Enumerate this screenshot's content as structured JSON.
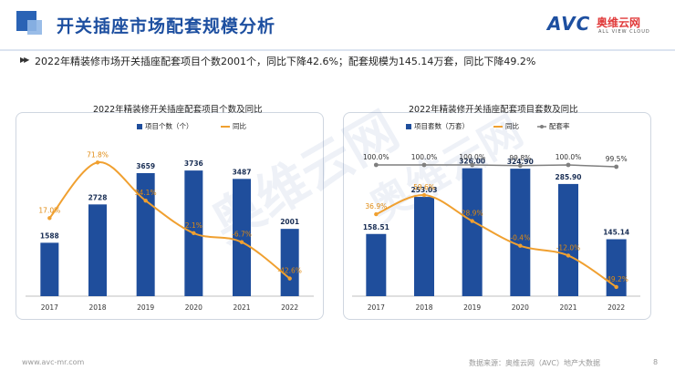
{
  "header": {
    "title": "开关插座市场配套规模分析"
  },
  "brand": {
    "logo_text": "AVC",
    "name_cn": "奥维云网",
    "name_en": "ALL VIEW CLOUD"
  },
  "summary": {
    "icon": "double-chevron-icon",
    "text": "2022年精装修市场开关插座配套项目个数2001个，同比下降42.6%；配套规模为145.14万套，同比下降49.2%"
  },
  "watermark": {
    "text": "奥维云网"
  },
  "footer": {
    "url": "www.avc-mr.com",
    "source": "数据来源：奥维云网（AVC）地产大数据",
    "page": "8"
  },
  "colors": {
    "bar": "#1f4e9c",
    "line": "#f0a030",
    "rate_line": "#7f7f7f",
    "title": "#1d4fa0"
  },
  "chart_data": [
    {
      "type": "bar",
      "title": "2022年精装修开关插座配套项目个数及同比",
      "categories": [
        "2017",
        "2018",
        "2019",
        "2020",
        "2021",
        "2022"
      ],
      "series": [
        {
          "name": "项目个数（个）",
          "type": "bar",
          "values": [
            1588,
            2728,
            3659,
            3736,
            3487,
            2001
          ],
          "labels": [
            "1588",
            "2728",
            "3659",
            "3736",
            "3487",
            "2001"
          ]
        },
        {
          "name": "同比",
          "type": "line",
          "values": [
            17.0,
            71.8,
            34.1,
            2.1,
            -6.7,
            -42.6
          ],
          "labels": [
            "17.0%",
            "71.8%",
            "34.1%",
            "2.1%",
            "-6.7%",
            "-42.6%"
          ]
        }
      ],
      "ylim": [
        0,
        4200
      ],
      "y2lim": [
        -60,
        90
      ],
      "grid": false,
      "legend": "top"
    },
    {
      "type": "bar",
      "title": "2022年精装修开关插座配套项目套数及同比",
      "categories": [
        "2017",
        "2018",
        "2019",
        "2020",
        "2021",
        "2022"
      ],
      "series": [
        {
          "name": "项目套数（万套）",
          "type": "bar",
          "values": [
            158.51,
            253.03,
            326.0,
            324.9,
            285.9,
            145.14
          ],
          "labels": [
            "158.51",
            "253.03",
            "326.00",
            "324.90",
            "285.90",
            "145.14"
          ]
        },
        {
          "name": "同比",
          "type": "line",
          "values": [
            36.9,
            59.6,
            28.9,
            -0.4,
            -12.0,
            -49.2
          ],
          "labels": [
            "36.9%",
            "59.6%",
            "28.9%",
            "-0.4%",
            "-12.0%",
            "-49.2%"
          ]
        },
        {
          "name": "配套率",
          "type": "line",
          "values": [
            100.0,
            100.0,
            100.0,
            99.8,
            100.0,
            99.5
          ],
          "labels": [
            "100.0%",
            "100.0%",
            "100.0%",
            "99.8%",
            "100.0%",
            "99.5%"
          ]
        }
      ],
      "ylim": [
        0,
        360
      ],
      "y2lim": [
        -60,
        120
      ],
      "grid": false,
      "legend": "top"
    }
  ]
}
